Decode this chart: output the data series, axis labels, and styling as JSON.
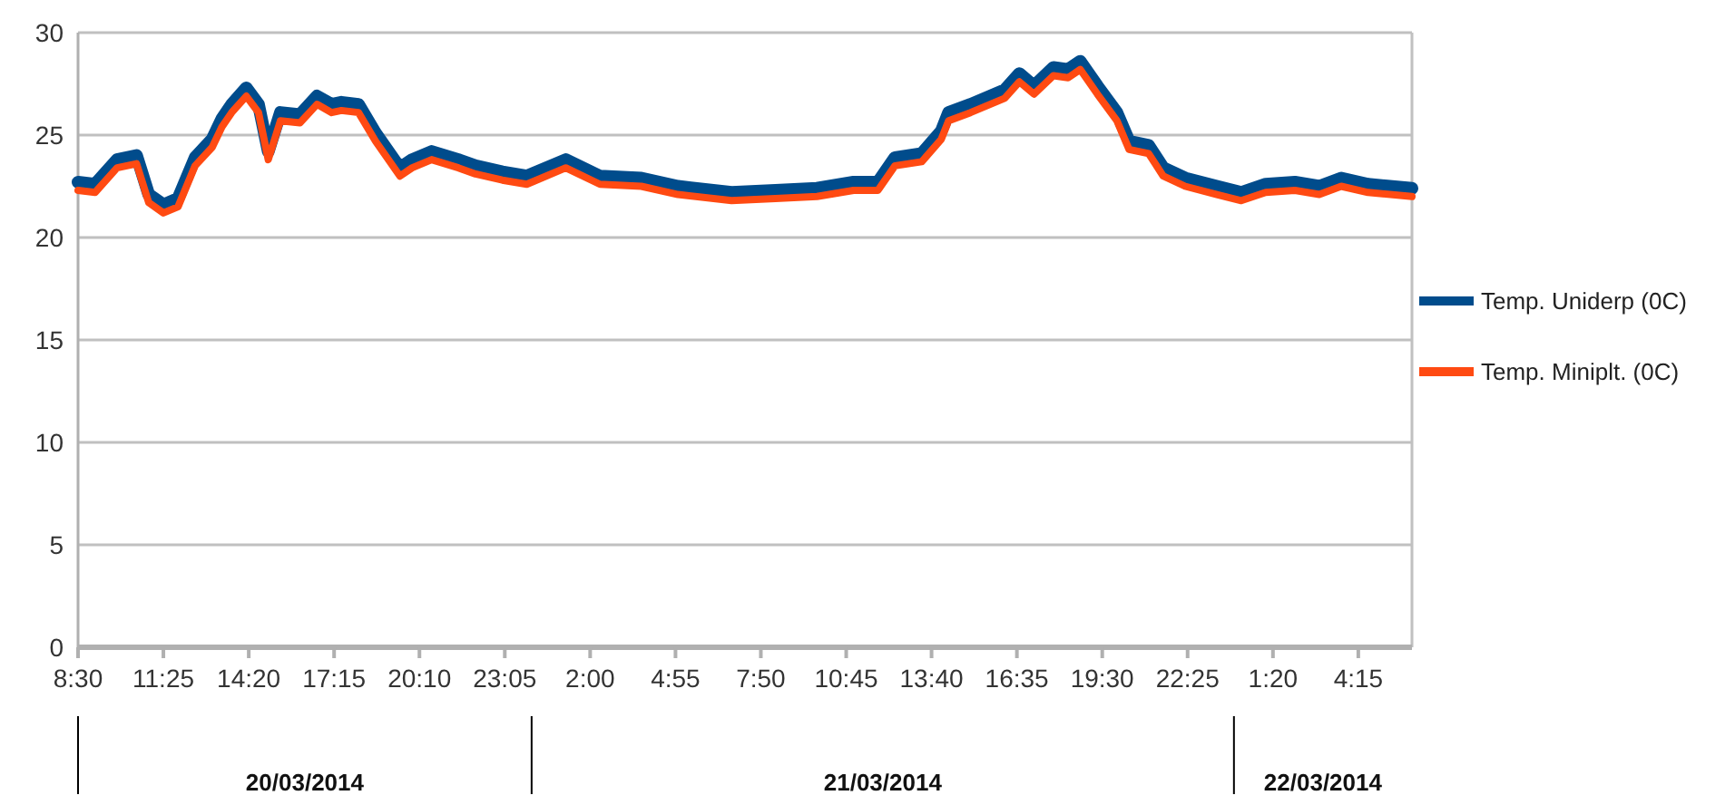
{
  "chart_data": {
    "type": "line",
    "x": [
      "2014-03-20T08:30",
      "2014-03-20T09:05",
      "2014-03-20T09:50",
      "2014-03-20T10:30",
      "2014-03-20T10:55",
      "2014-03-20T11:25",
      "2014-03-20T11:55",
      "2014-03-20T12:30",
      "2014-03-20T13:05",
      "2014-03-20T13:25",
      "2014-03-20T13:45",
      "2014-03-20T14:15",
      "2014-03-20T14:40",
      "2014-03-20T15:00",
      "2014-03-20T15:25",
      "2014-03-20T16:05",
      "2014-03-20T16:40",
      "2014-03-20T17:10",
      "2014-03-20T17:30",
      "2014-03-20T18:05",
      "2014-03-20T18:40",
      "2014-03-20T19:30",
      "2014-03-20T19:55",
      "2014-03-20T20:35",
      "2014-03-20T21:30",
      "2014-03-20T22:05",
      "2014-03-20T23:00",
      "2014-03-20T23:50",
      "2014-03-21T00:00",
      "2014-03-21T01:10",
      "2014-03-21T02:20",
      "2014-03-21T03:45",
      "2014-03-21T05:00",
      "2014-03-21T06:50",
      "2014-03-21T08:20",
      "2014-03-21T09:45",
      "2014-03-21T11:00",
      "2014-03-21T11:50",
      "2014-03-21T12:25",
      "2014-03-21T13:20",
      "2014-03-21T14:00",
      "2014-03-21T14:15",
      "2014-03-21T15:00",
      "2014-03-21T16:10",
      "2014-03-21T16:40",
      "2014-03-21T17:10",
      "2014-03-21T17:50",
      "2014-03-21T18:20",
      "2014-03-21T18:45",
      "2014-03-21T19:20",
      "2014-03-21T20:00",
      "2014-03-21T20:25",
      "2014-03-21T21:05",
      "2014-03-21T21:35",
      "2014-03-21T22:20",
      "2014-03-21T23:25",
      "2014-03-22T00:15",
      "2014-03-22T01:05",
      "2014-03-22T02:05",
      "2014-03-22T02:55",
      "2014-03-22T03:40",
      "2014-03-22T04:35",
      "2014-03-22T06:05"
    ],
    "series": [
      {
        "name": "Temp. Uniderp (0C)",
        "color": "#004c8c",
        "values": [
          22.7,
          22.6,
          23.8,
          24.0,
          22.1,
          21.6,
          21.9,
          23.9,
          24.8,
          25.8,
          26.5,
          27.3,
          26.5,
          24.2,
          26.1,
          26.0,
          26.9,
          26.5,
          26.6,
          26.5,
          25.1,
          23.4,
          23.8,
          24.2,
          23.8,
          23.5,
          23.2,
          23.0,
          23.1,
          23.8,
          23.0,
          22.9,
          22.5,
          22.2,
          22.3,
          22.4,
          22.7,
          22.7,
          23.9,
          24.1,
          25.2,
          26.1,
          26.5,
          27.2,
          28.0,
          27.4,
          28.3,
          28.2,
          28.6,
          27.4,
          26.1,
          24.7,
          24.5,
          23.4,
          22.9,
          22.5,
          22.2,
          22.6,
          22.7,
          22.5,
          22.9,
          22.6,
          22.4
        ]
      },
      {
        "name": "Temp. Miniplt. (0C)",
        "color": "#ff4a12",
        "values": [
          22.3,
          22.2,
          23.4,
          23.6,
          21.7,
          21.2,
          21.5,
          23.5,
          24.4,
          25.4,
          26.1,
          26.9,
          26.1,
          23.8,
          25.7,
          25.6,
          26.5,
          26.1,
          26.2,
          26.1,
          24.7,
          23.0,
          23.4,
          23.8,
          23.4,
          23.1,
          22.8,
          22.6,
          22.7,
          23.4,
          22.6,
          22.5,
          22.1,
          21.8,
          21.9,
          22.0,
          22.3,
          22.3,
          23.5,
          23.7,
          24.8,
          25.7,
          26.1,
          26.8,
          27.6,
          27.0,
          27.9,
          27.8,
          28.2,
          27.0,
          25.7,
          24.3,
          24.1,
          23.0,
          22.5,
          22.1,
          21.8,
          22.2,
          22.3,
          22.1,
          22.5,
          22.2,
          22.0
        ]
      }
    ],
    "xlim": [
      "2014-03-20T08:30",
      "2014-03-22T06:05"
    ],
    "xticks": [
      {
        "value": "2014-03-20T08:30",
        "label": "8:30"
      },
      {
        "value": "2014-03-20T11:25",
        "label": "11:25"
      },
      {
        "value": "2014-03-20T14:20",
        "label": "14:20"
      },
      {
        "value": "2014-03-20T17:15",
        "label": "17:15"
      },
      {
        "value": "2014-03-20T20:10",
        "label": "20:10"
      },
      {
        "value": "2014-03-20T23:05",
        "label": "23:05"
      },
      {
        "value": "2014-03-21T02:00",
        "label": "2:00"
      },
      {
        "value": "2014-03-21T04:55",
        "label": "4:55"
      },
      {
        "value": "2014-03-21T07:50",
        "label": "7:50"
      },
      {
        "value": "2014-03-21T10:45",
        "label": "10:45"
      },
      {
        "value": "2014-03-21T13:40",
        "label": "13:40"
      },
      {
        "value": "2014-03-21T16:35",
        "label": "16:35"
      },
      {
        "value": "2014-03-21T19:30",
        "label": "19:30"
      },
      {
        "value": "2014-03-21T22:25",
        "label": "22:25"
      },
      {
        "value": "2014-03-22T01:20",
        "label": "1:20"
      },
      {
        "value": "2014-03-22T04:15",
        "label": "4:15"
      }
    ],
    "ylim": [
      0,
      30
    ],
    "yticks": [
      0,
      5,
      10,
      15,
      20,
      25,
      30
    ],
    "grid": "y",
    "legend": "right",
    "marker": "none",
    "line_style": "solid",
    "annotations": [
      "20/03/2014",
      "21/03/2014",
      "22/03/2014"
    ]
  }
}
